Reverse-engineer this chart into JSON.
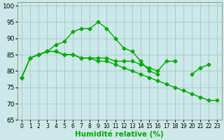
{
  "x": [
    0,
    1,
    2,
    3,
    4,
    5,
    6,
    7,
    8,
    9,
    10,
    11,
    12,
    13,
    14,
    15,
    16,
    17,
    18,
    19,
    20,
    21,
    22,
    23
  ],
  "line_peak": [
    78,
    84,
    85,
    86,
    88,
    89,
    92,
    93,
    93,
    95,
    93,
    90,
    87,
    86,
    83,
    80,
    79,
    null,
    null,
    null,
    null,
    null,
    null,
    null
  ],
  "line_flat": [
    78,
    84,
    85,
    86,
    86,
    85,
    85,
    84,
    84,
    84,
    84,
    83,
    83,
    83,
    82,
    81,
    80,
    83,
    83,
    null,
    79,
    81,
    82,
    null
  ],
  "line_decline": [
    78,
    84,
    85,
    86,
    86,
    85,
    85,
    84,
    84,
    83,
    83,
    82,
    81,
    80,
    79,
    78,
    77,
    76,
    75,
    74,
    73,
    72,
    71,
    71
  ],
  "bg_color": "#cce8e8",
  "grid_color": "#aacccc",
  "line_color": "#00aa00",
  "marker": "D",
  "markersize": 2.5,
  "linewidth": 1.0,
  "xlabel": "Humidité relative (%)",
  "xlim": [
    -0.5,
    23.5
  ],
  "ylim": [
    65,
    101
  ],
  "yticks": [
    65,
    70,
    75,
    80,
    85,
    90,
    95,
    100
  ],
  "xticks": [
    0,
    1,
    2,
    3,
    4,
    5,
    6,
    7,
    8,
    9,
    10,
    11,
    12,
    13,
    14,
    15,
    16,
    17,
    18,
    19,
    20,
    21,
    22,
    23
  ],
  "xlabel_fontsize": 7.5,
  "tick_fontsize": 6.5
}
